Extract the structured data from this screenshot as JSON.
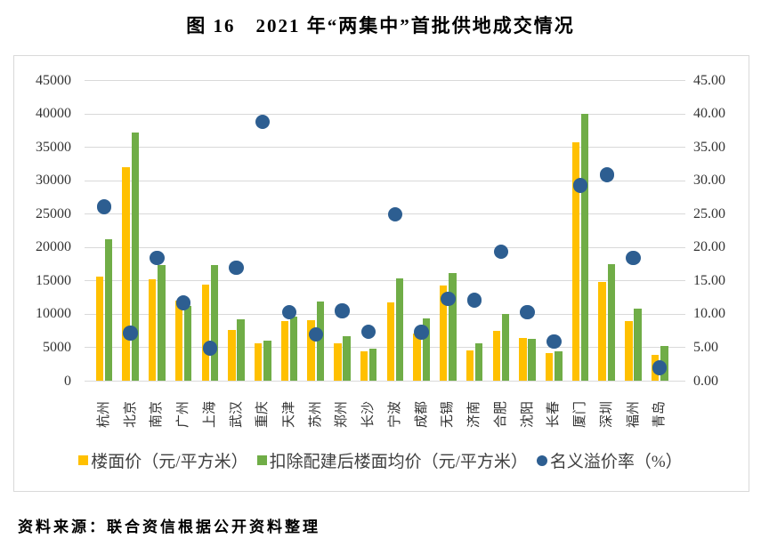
{
  "title": "图 16　2021 年“两集中”首批供地成交情况",
  "source_note": "资料来源：联合资信根据公开资料整理",
  "chart_data": {
    "type": "combo-bar-scatter",
    "categories": [
      "杭州",
      "北京",
      "南京",
      "广州",
      "上海",
      "武汉",
      "重庆",
      "天津",
      "苏州",
      "郑州",
      "长沙",
      "宁波",
      "成都",
      "无锡",
      "济南",
      "合肥",
      "沈阳",
      "长春",
      "厦门",
      "深圳",
      "福州",
      "青岛"
    ],
    "series": [
      {
        "name": "楼面价（元/平方米）",
        "type": "bar",
        "axis": "left",
        "color": "#FFC000",
        "values": [
          15600,
          32000,
          15200,
          12000,
          14500,
          7700,
          5600,
          9000,
          9100,
          5600,
          4400,
          11800,
          7100,
          14300,
          4600,
          7500,
          6400,
          4200,
          35800,
          14900,
          9000,
          3900
        ]
      },
      {
        "name": "扣除配建后楼面均价（元/平方米）",
        "type": "bar",
        "axis": "left",
        "color": "#70AD47",
        "values": [
          21300,
          37200,
          17400,
          11200,
          17400,
          9300,
          6000,
          9600,
          11900,
          6700,
          4900,
          15400,
          9400,
          16200,
          5600,
          10000,
          6300,
          4400,
          40000,
          17500,
          10900,
          5200
        ]
      },
      {
        "name": "名义溢价率（%）",
        "type": "scatter",
        "axis": "right",
        "color": "#2D5E91",
        "values": [
          26.1,
          7.2,
          18.4,
          11.7,
          4.9,
          17.0,
          38.8,
          10.3,
          7.0,
          10.5,
          7.4,
          25.0,
          7.3,
          12.3,
          12.1,
          19.4,
          10.3,
          5.9,
          29.3,
          30.9,
          18.4,
          2.0
        ]
      }
    ],
    "left_axis": {
      "min": 0,
      "max": 45000,
      "step": 5000,
      "tick_labels": [
        "0",
        "5000",
        "10000",
        "15000",
        "20000",
        "25000",
        "30000",
        "35000",
        "40000",
        "45000"
      ]
    },
    "right_axis": {
      "min": 0,
      "max": 45,
      "step": 5,
      "tick_labels": [
        "0.00",
        "5.00",
        "10.00",
        "15.00",
        "20.00",
        "25.00",
        "30.00",
        "35.00",
        "40.00",
        "45.00"
      ]
    },
    "gridlines": true,
    "legend_position": "bottom"
  },
  "colors": {
    "grid": "#D9D9D9",
    "frame_border": "#D9D9D9",
    "axis_text": "#333333"
  }
}
